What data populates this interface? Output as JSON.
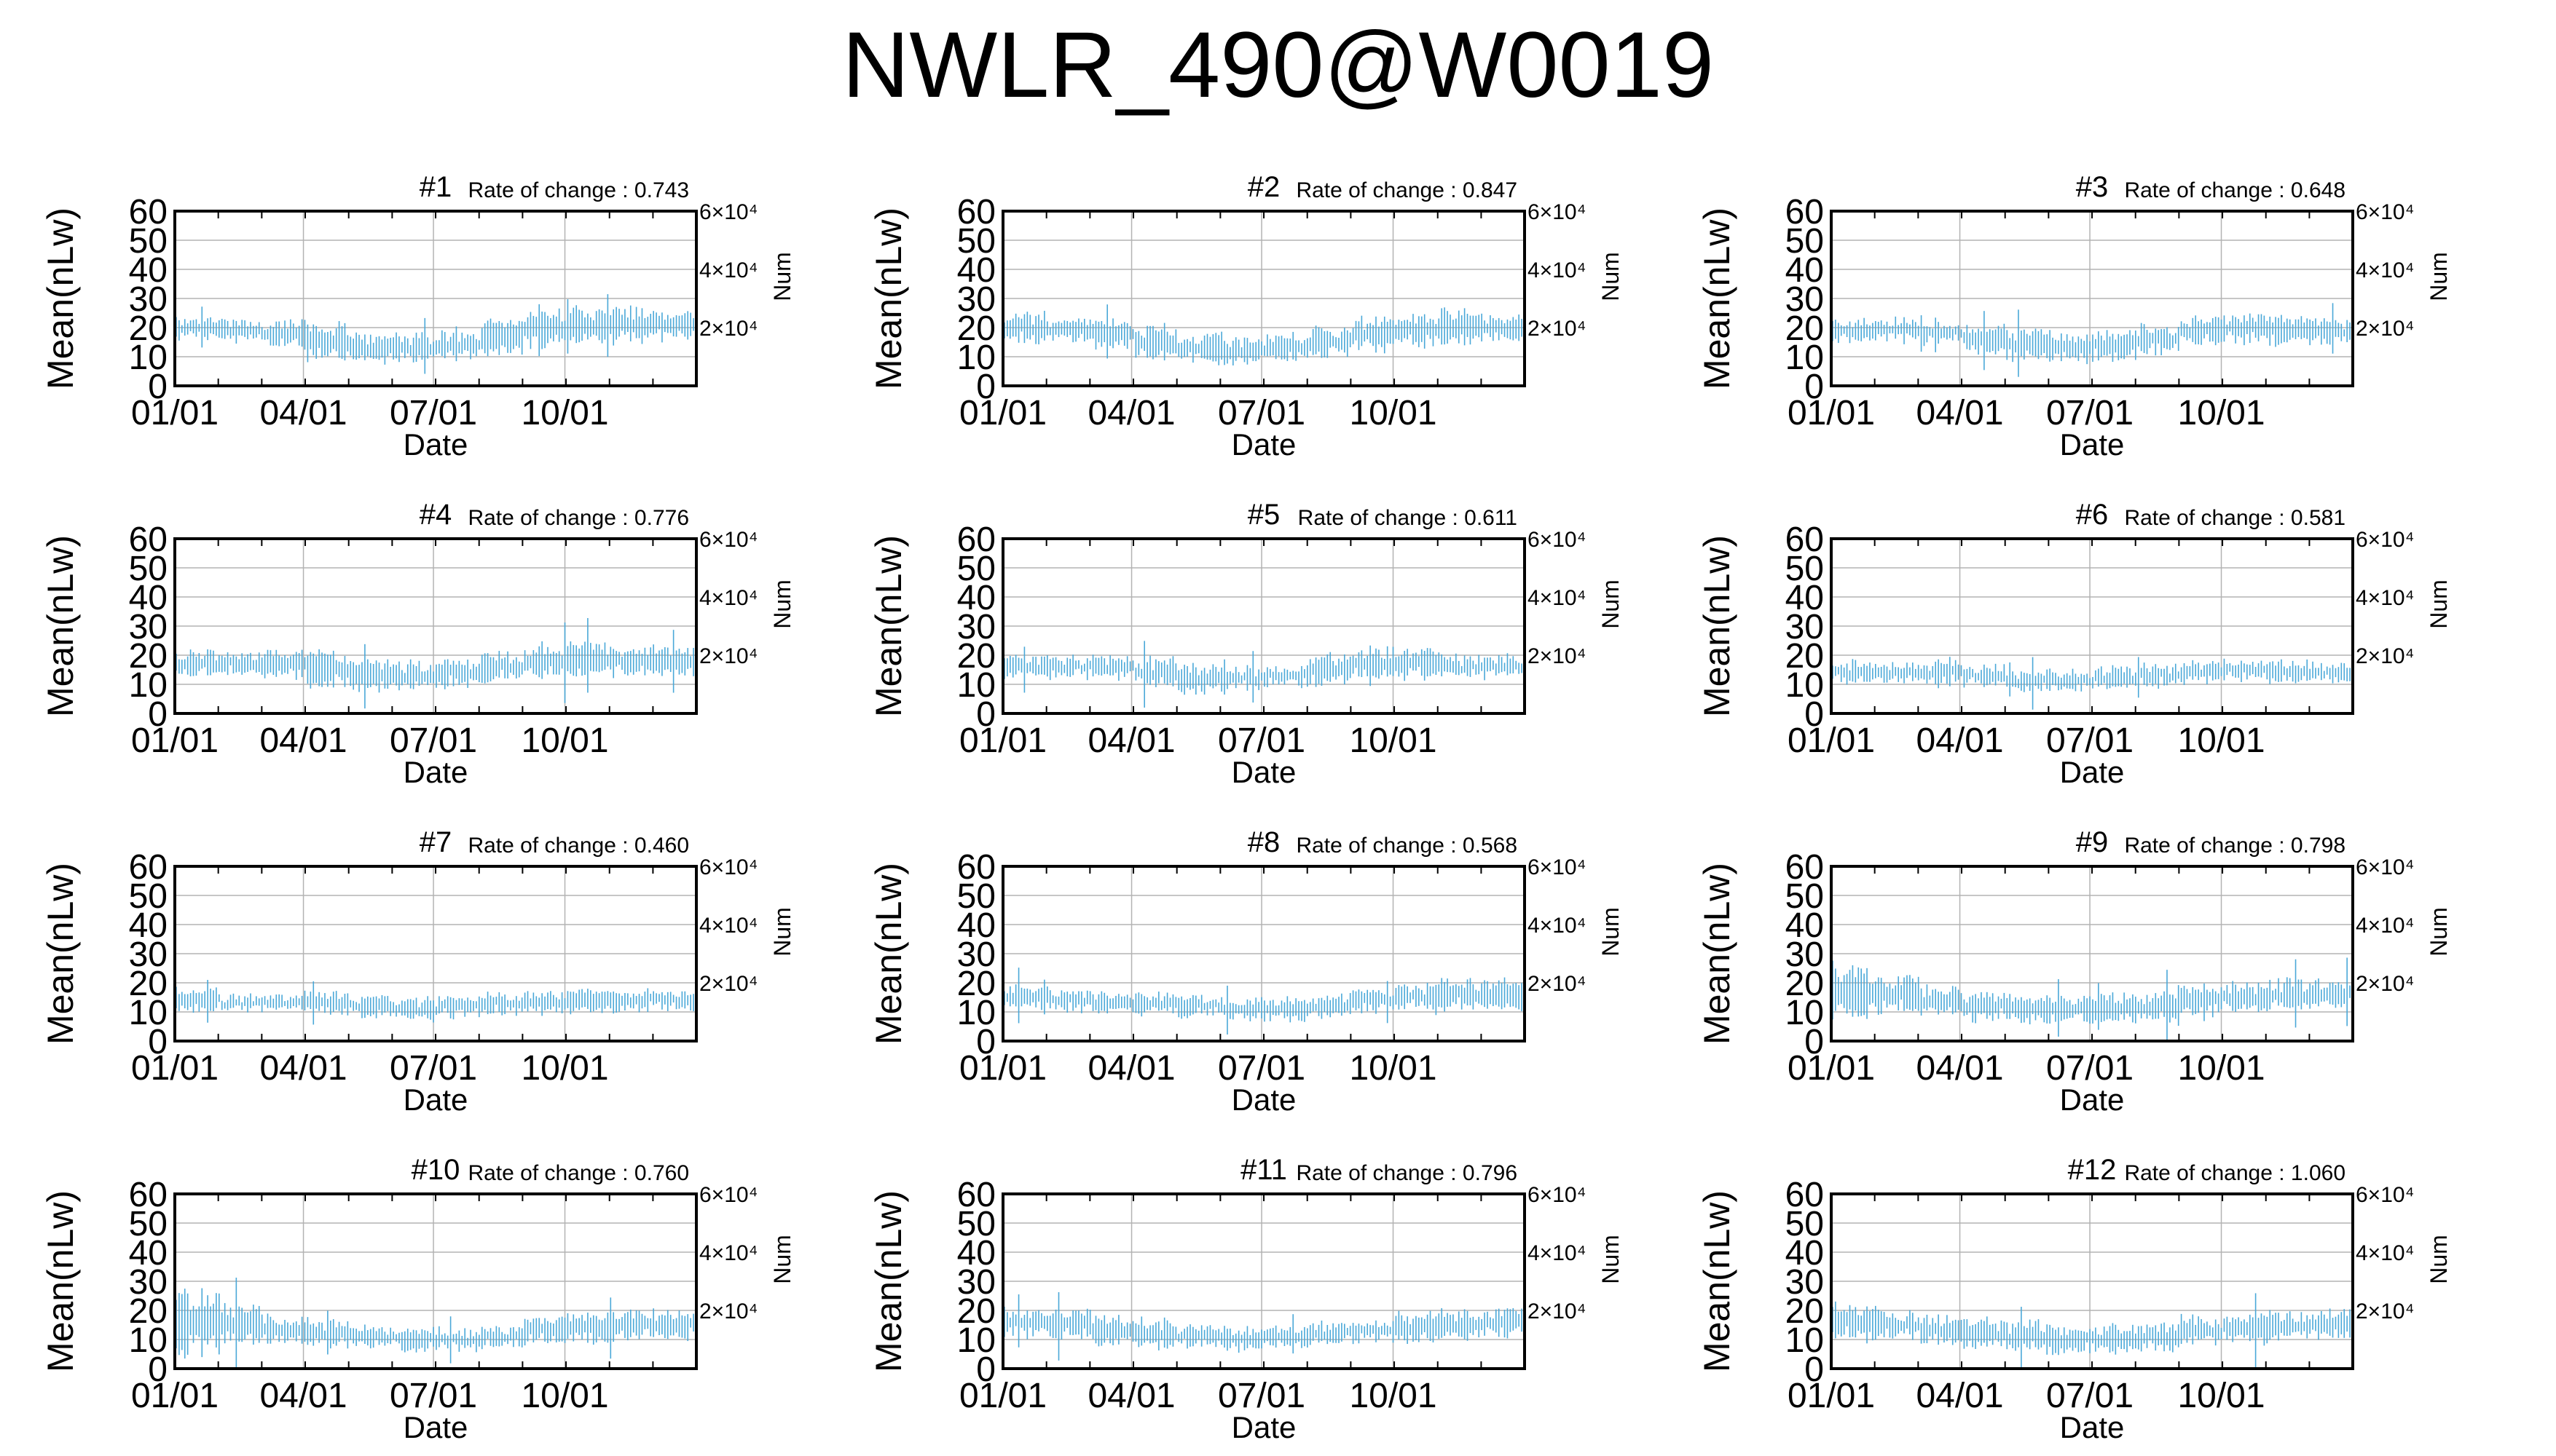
{
  "figure_title": "NWLR_490@W0019",
  "colors": {
    "series": "#4aa8d8",
    "grid": "#b3b3b3",
    "axis": "#000000"
  },
  "chart_data": [
    {
      "type": "bar",
      "title": "#1",
      "rate_of_change": "Rate of change : 0.743",
      "xlabel": "Date",
      "ylabel": "Mean(nLw)",
      "y2label": "Num",
      "x_ticks": [
        "01/01",
        "04/01",
        "07/01",
        "10/01"
      ],
      "y_ticks": [
        "0",
        "10",
        "20",
        "30",
        "40",
        "50",
        "60"
      ],
      "y2_ticks": [
        "2×10⁴",
        "4×10⁴",
        "6×10⁴"
      ],
      "ylim": [
        0,
        60
      ],
      "y2lim": [
        0,
        60000
      ],
      "grid": true,
      "monthly_mean": [
        20,
        19,
        18,
        15,
        13,
        13,
        14,
        17,
        20,
        21,
        21,
        21
      ],
      "monthly_spread": [
        3,
        3,
        4,
        5,
        4,
        4,
        4,
        5,
        5,
        5,
        5,
        4
      ]
    },
    {
      "type": "bar",
      "title": "#2",
      "rate_of_change": "Rate of change : 0.847",
      "xlabel": "Date",
      "ylabel": "Mean(nLw)",
      "y2label": "Num",
      "x_ticks": [
        "01/01",
        "04/01",
        "07/01",
        "10/01"
      ],
      "y_ticks": [
        "0",
        "10",
        "20",
        "30",
        "40",
        "50",
        "60"
      ],
      "y2_ticks": [
        "2×10⁴",
        "4×10⁴",
        "6×10⁴"
      ],
      "ylim": [
        0,
        60
      ],
      "y2lim": [
        0,
        60000
      ],
      "grid": true,
      "monthly_mean": [
        20,
        19,
        18,
        15,
        13,
        12,
        13,
        15,
        18,
        19,
        20,
        20
      ],
      "monthly_spread": [
        4,
        3,
        4,
        5,
        4,
        4,
        4,
        4,
        5,
        5,
        5,
        4
      ]
    },
    {
      "type": "bar",
      "title": "#3",
      "rate_of_change": "Rate of change : 0.648",
      "xlabel": "Date",
      "ylabel": "Mean(nLw)",
      "y2label": "Num",
      "x_ticks": [
        "01/01",
        "04/01",
        "07/01",
        "10/01"
      ],
      "y_ticks": [
        "0",
        "10",
        "20",
        "30",
        "40",
        "50",
        "60"
      ],
      "y2_ticks": [
        "2×10⁴",
        "4×10⁴",
        "6×10⁴"
      ],
      "ylim": [
        0,
        60
      ],
      "y2lim": [
        0,
        60000
      ],
      "grid": true,
      "monthly_mean": [
        19,
        19,
        18,
        16,
        14,
        13,
        14,
        16,
        19,
        20,
        19,
        19
      ],
      "monthly_spread": [
        3,
        3,
        3,
        4,
        4,
        4,
        4,
        4,
        4,
        4,
        4,
        3
      ]
    },
    {
      "type": "bar",
      "title": "#4",
      "rate_of_change": "Rate of change : 0.776",
      "xlabel": "Date",
      "ylabel": "Mean(nLw)",
      "y2label": "Num",
      "x_ticks": [
        "01/01",
        "04/01",
        "07/01",
        "10/01"
      ],
      "y_ticks": [
        "0",
        "10",
        "20",
        "30",
        "40",
        "50",
        "60"
      ],
      "y2_ticks": [
        "2×10⁴",
        "4×10⁴",
        "6×10⁴"
      ],
      "ylim": [
        0,
        60
      ],
      "y2lim": [
        0,
        60000
      ],
      "grid": true,
      "monthly_mean": [
        17,
        17,
        17,
        15,
        13,
        13,
        14,
        16,
        18,
        19,
        18,
        18
      ],
      "monthly_spread": [
        4,
        3,
        4,
        5,
        4,
        4,
        4,
        4,
        5,
        5,
        4,
        4
      ]
    },
    {
      "type": "bar",
      "title": "#5",
      "rate_of_change": "Rate of change : 0.611",
      "xlabel": "Date",
      "ylabel": "Mean(nLw)",
      "y2label": "Num",
      "x_ticks": [
        "01/01",
        "04/01",
        "07/01",
        "10/01"
      ],
      "y_ticks": [
        "0",
        "10",
        "20",
        "30",
        "40",
        "50",
        "60"
      ],
      "y2_ticks": [
        "2×10⁴",
        "4×10⁴",
        "6×10⁴"
      ],
      "ylim": [
        0,
        60
      ],
      "y2lim": [
        0,
        60000
      ],
      "grid": true,
      "monthly_mean": [
        16,
        16,
        16,
        14,
        12,
        12,
        13,
        15,
        17,
        17,
        16,
        16
      ],
      "monthly_spread": [
        3,
        3,
        3,
        4,
        4,
        3,
        3,
        4,
        4,
        4,
        3,
        3
      ]
    },
    {
      "type": "bar",
      "title": "#6",
      "rate_of_change": "Rate of change : 0.581",
      "xlabel": "Date",
      "ylabel": "Mean(nLw)",
      "y2label": "Num",
      "x_ticks": [
        "01/01",
        "04/01",
        "07/01",
        "10/01"
      ],
      "y_ticks": [
        "0",
        "10",
        "20",
        "30",
        "40",
        "50",
        "60"
      ],
      "y2_ticks": [
        "2×10⁴",
        "4×10⁴",
        "6×10⁴"
      ],
      "ylim": [
        0,
        60
      ],
      "y2lim": [
        0,
        60000
      ],
      "grid": true,
      "monthly_mean": [
        14,
        14,
        14,
        13,
        11,
        11,
        12,
        13,
        14,
        15,
        14,
        14
      ],
      "monthly_spread": [
        3,
        3,
        3,
        3,
        3,
        3,
        3,
        3,
        3,
        3,
        3,
        3
      ]
    },
    {
      "type": "bar",
      "title": "#7",
      "rate_of_change": "Rate of change : 0.460",
      "xlabel": "Date",
      "ylabel": "Mean(nLw)",
      "y2label": "Num",
      "x_ticks": [
        "01/01",
        "04/01",
        "07/01",
        "10/01"
      ],
      "y_ticks": [
        "0",
        "10",
        "20",
        "30",
        "40",
        "50",
        "60"
      ],
      "y2_ticks": [
        "2×10⁴",
        "4×10⁴",
        "6×10⁴"
      ],
      "ylim": [
        0,
        60
      ],
      "y2lim": [
        0,
        60000
      ],
      "grid": true,
      "monthly_mean": [
        14,
        13,
        13,
        13,
        12,
        11,
        12,
        13,
        13,
        14,
        14,
        14
      ],
      "monthly_spread": [
        3,
        2,
        2,
        3,
        3,
        3,
        3,
        3,
        3,
        3,
        3,
        3
      ]
    },
    {
      "type": "bar",
      "title": "#8",
      "rate_of_change": "Rate of change : 0.568",
      "xlabel": "Date",
      "ylabel": "Mean(nLw)",
      "y2label": "Num",
      "x_ticks": [
        "01/01",
        "04/01",
        "07/01",
        "10/01"
      ],
      "y_ticks": [
        "0",
        "10",
        "20",
        "30",
        "40",
        "50",
        "60"
      ],
      "y2_ticks": [
        "2×10⁴",
        "4×10⁴",
        "6×10⁴"
      ],
      "ylim": [
        0,
        60
      ],
      "y2lim": [
        0,
        60000
      ],
      "grid": true,
      "monthly_mean": [
        15,
        14,
        13,
        13,
        12,
        11,
        11,
        12,
        14,
        15,
        16,
        16
      ],
      "monthly_spread": [
        3,
        3,
        3,
        3,
        3,
        3,
        3,
        3,
        3,
        4,
        4,
        4
      ]
    },
    {
      "type": "bar",
      "title": "#9",
      "rate_of_change": "Rate of change : 0.798",
      "xlabel": "Date",
      "ylabel": "Mean(nLw)",
      "y2label": "Num",
      "x_ticks": [
        "01/01",
        "04/01",
        "07/01",
        "10/01"
      ],
      "y_ticks": [
        "0",
        "10",
        "20",
        "30",
        "40",
        "50",
        "60"
      ],
      "y2_ticks": [
        "2×10⁴",
        "4×10⁴",
        "6×10⁴"
      ],
      "ylim": [
        0,
        60
      ],
      "y2lim": [
        0,
        60000
      ],
      "grid": true,
      "monthly_mean": [
        17,
        16,
        14,
        12,
        11,
        11,
        11,
        12,
        14,
        15,
        16,
        16
      ],
      "monthly_spread": [
        8,
        5,
        4,
        4,
        4,
        4,
        4,
        4,
        4,
        4,
        4,
        4
      ]
    },
    {
      "type": "bar",
      "title": "#10",
      "rate_of_change": "Rate of change : 0.760",
      "xlabel": "Date",
      "ylabel": "Mean(nLw)",
      "y2label": "Num",
      "x_ticks": [
        "01/01",
        "04/01",
        "07/01",
        "10/01"
      ],
      "y_ticks": [
        "0",
        "10",
        "20",
        "30",
        "40",
        "50",
        "60"
      ],
      "y2_ticks": [
        "2×10⁴",
        "4×10⁴",
        "6×10⁴"
      ],
      "ylim": [
        0,
        60
      ],
      "y2lim": [
        0,
        60000
      ],
      "grid": true,
      "monthly_mean": [
        16,
        15,
        13,
        12,
        11,
        10,
        10,
        11,
        13,
        14,
        15,
        15
      ],
      "monthly_spread": [
        10,
        6,
        4,
        4,
        3,
        3,
        3,
        3,
        4,
        4,
        4,
        4
      ]
    },
    {
      "type": "bar",
      "title": "#11",
      "rate_of_change": "Rate of change : 0.796",
      "xlabel": "Date",
      "ylabel": "Mean(nLw)",
      "y2label": "Num",
      "x_ticks": [
        "01/01",
        "04/01",
        "07/01",
        "10/01"
      ],
      "y_ticks": [
        "0",
        "10",
        "20",
        "30",
        "40",
        "50",
        "60"
      ],
      "y2_ticks": [
        "2×10⁴",
        "4×10⁴",
        "6×10⁴"
      ],
      "ylim": [
        0,
        60
      ],
      "y2lim": [
        0,
        60000
      ],
      "grid": true,
      "monthly_mean": [
        16,
        15,
        13,
        12,
        11,
        10,
        11,
        12,
        13,
        14,
        15,
        16
      ],
      "monthly_spread": [
        4,
        4,
        4,
        4,
        3,
        3,
        3,
        3,
        3,
        4,
        4,
        4
      ]
    },
    {
      "type": "bar",
      "title": "#12",
      "rate_of_change": "Rate of change : 1.060",
      "xlabel": "Date",
      "ylabel": "Mean(nLw)",
      "y2label": "Num",
      "x_ticks": [
        "01/01",
        "04/01",
        "07/01",
        "10/01"
      ],
      "y_ticks": [
        "0",
        "10",
        "20",
        "30",
        "40",
        "50",
        "60"
      ],
      "y2_ticks": [
        "2×10⁴",
        "4×10⁴",
        "6×10⁴"
      ],
      "ylim": [
        0,
        60
      ],
      "y2lim": [
        0,
        60000
      ],
      "grid": true,
      "monthly_mean": [
        16,
        15,
        13,
        12,
        11,
        10,
        10,
        11,
        13,
        14,
        15,
        15
      ],
      "monthly_spread": [
        5,
        4,
        4,
        4,
        4,
        4,
        4,
        4,
        4,
        4,
        4,
        4
      ]
    }
  ]
}
